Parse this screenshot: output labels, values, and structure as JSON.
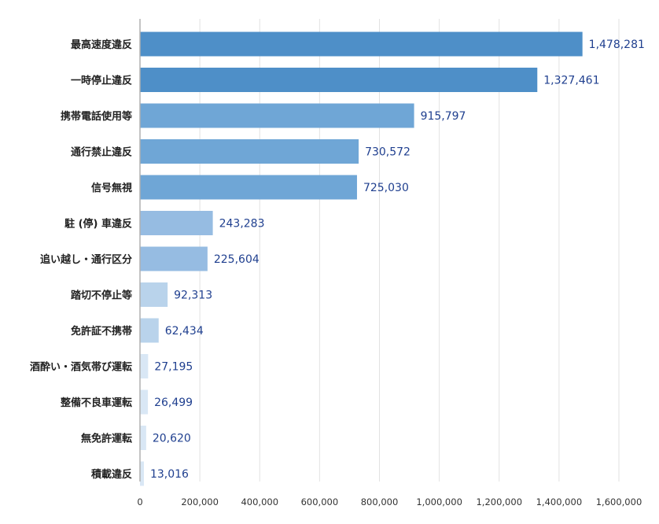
{
  "chart_data": {
    "type": "bar",
    "orientation": "horizontal",
    "title": "",
    "xlabel": "",
    "ylabel": "",
    "xlim": [
      0,
      1600000
    ],
    "grid": true,
    "legend": "none",
    "x_ticks": [
      "0",
      "200,000",
      "400,000",
      "600,000",
      "800,000",
      "1,000,000",
      "1,200,000",
      "1,400,000",
      "1,600,000"
    ],
    "categories": [
      "最高速度違反",
      "一時停止違反",
      "携帯電話使用等",
      "通行禁止違反",
      "信号無視",
      "駐 (停) 車違反",
      "追い越し・通行区分",
      "踏切不停止等",
      "免許証不携帯",
      "酒酔い・酒気帯び運転",
      "整備不良車運転",
      "無免許運転",
      "積載違反"
    ],
    "values": [
      1478281,
      1327461,
      915797,
      730572,
      725030,
      243283,
      225604,
      92313,
      62434,
      27195,
      26499,
      20620,
      13016
    ],
    "value_labels": [
      "1,478,281",
      "1,327,461",
      "915,797",
      "730,572",
      "725,030",
      "243,283",
      "225,604",
      "92,313",
      "62,434",
      "27,195",
      "26,499",
      "20,620",
      "13,016"
    ],
    "bar_colors": [
      "#4e8fc8",
      "#4e8fc8",
      "#6fa6d6",
      "#6fa6d6",
      "#6fa6d6",
      "#96bce2",
      "#96bce2",
      "#b9d3eb",
      "#b9d3eb",
      "#d9e7f5",
      "#d9e7f5",
      "#d9e7f5",
      "#d9e7f5"
    ],
    "colors": {
      "axis": "#b0b0b0",
      "grid": "#e2e2e2",
      "value_text": "#1f3f8f",
      "category_text": "#222222"
    }
  }
}
